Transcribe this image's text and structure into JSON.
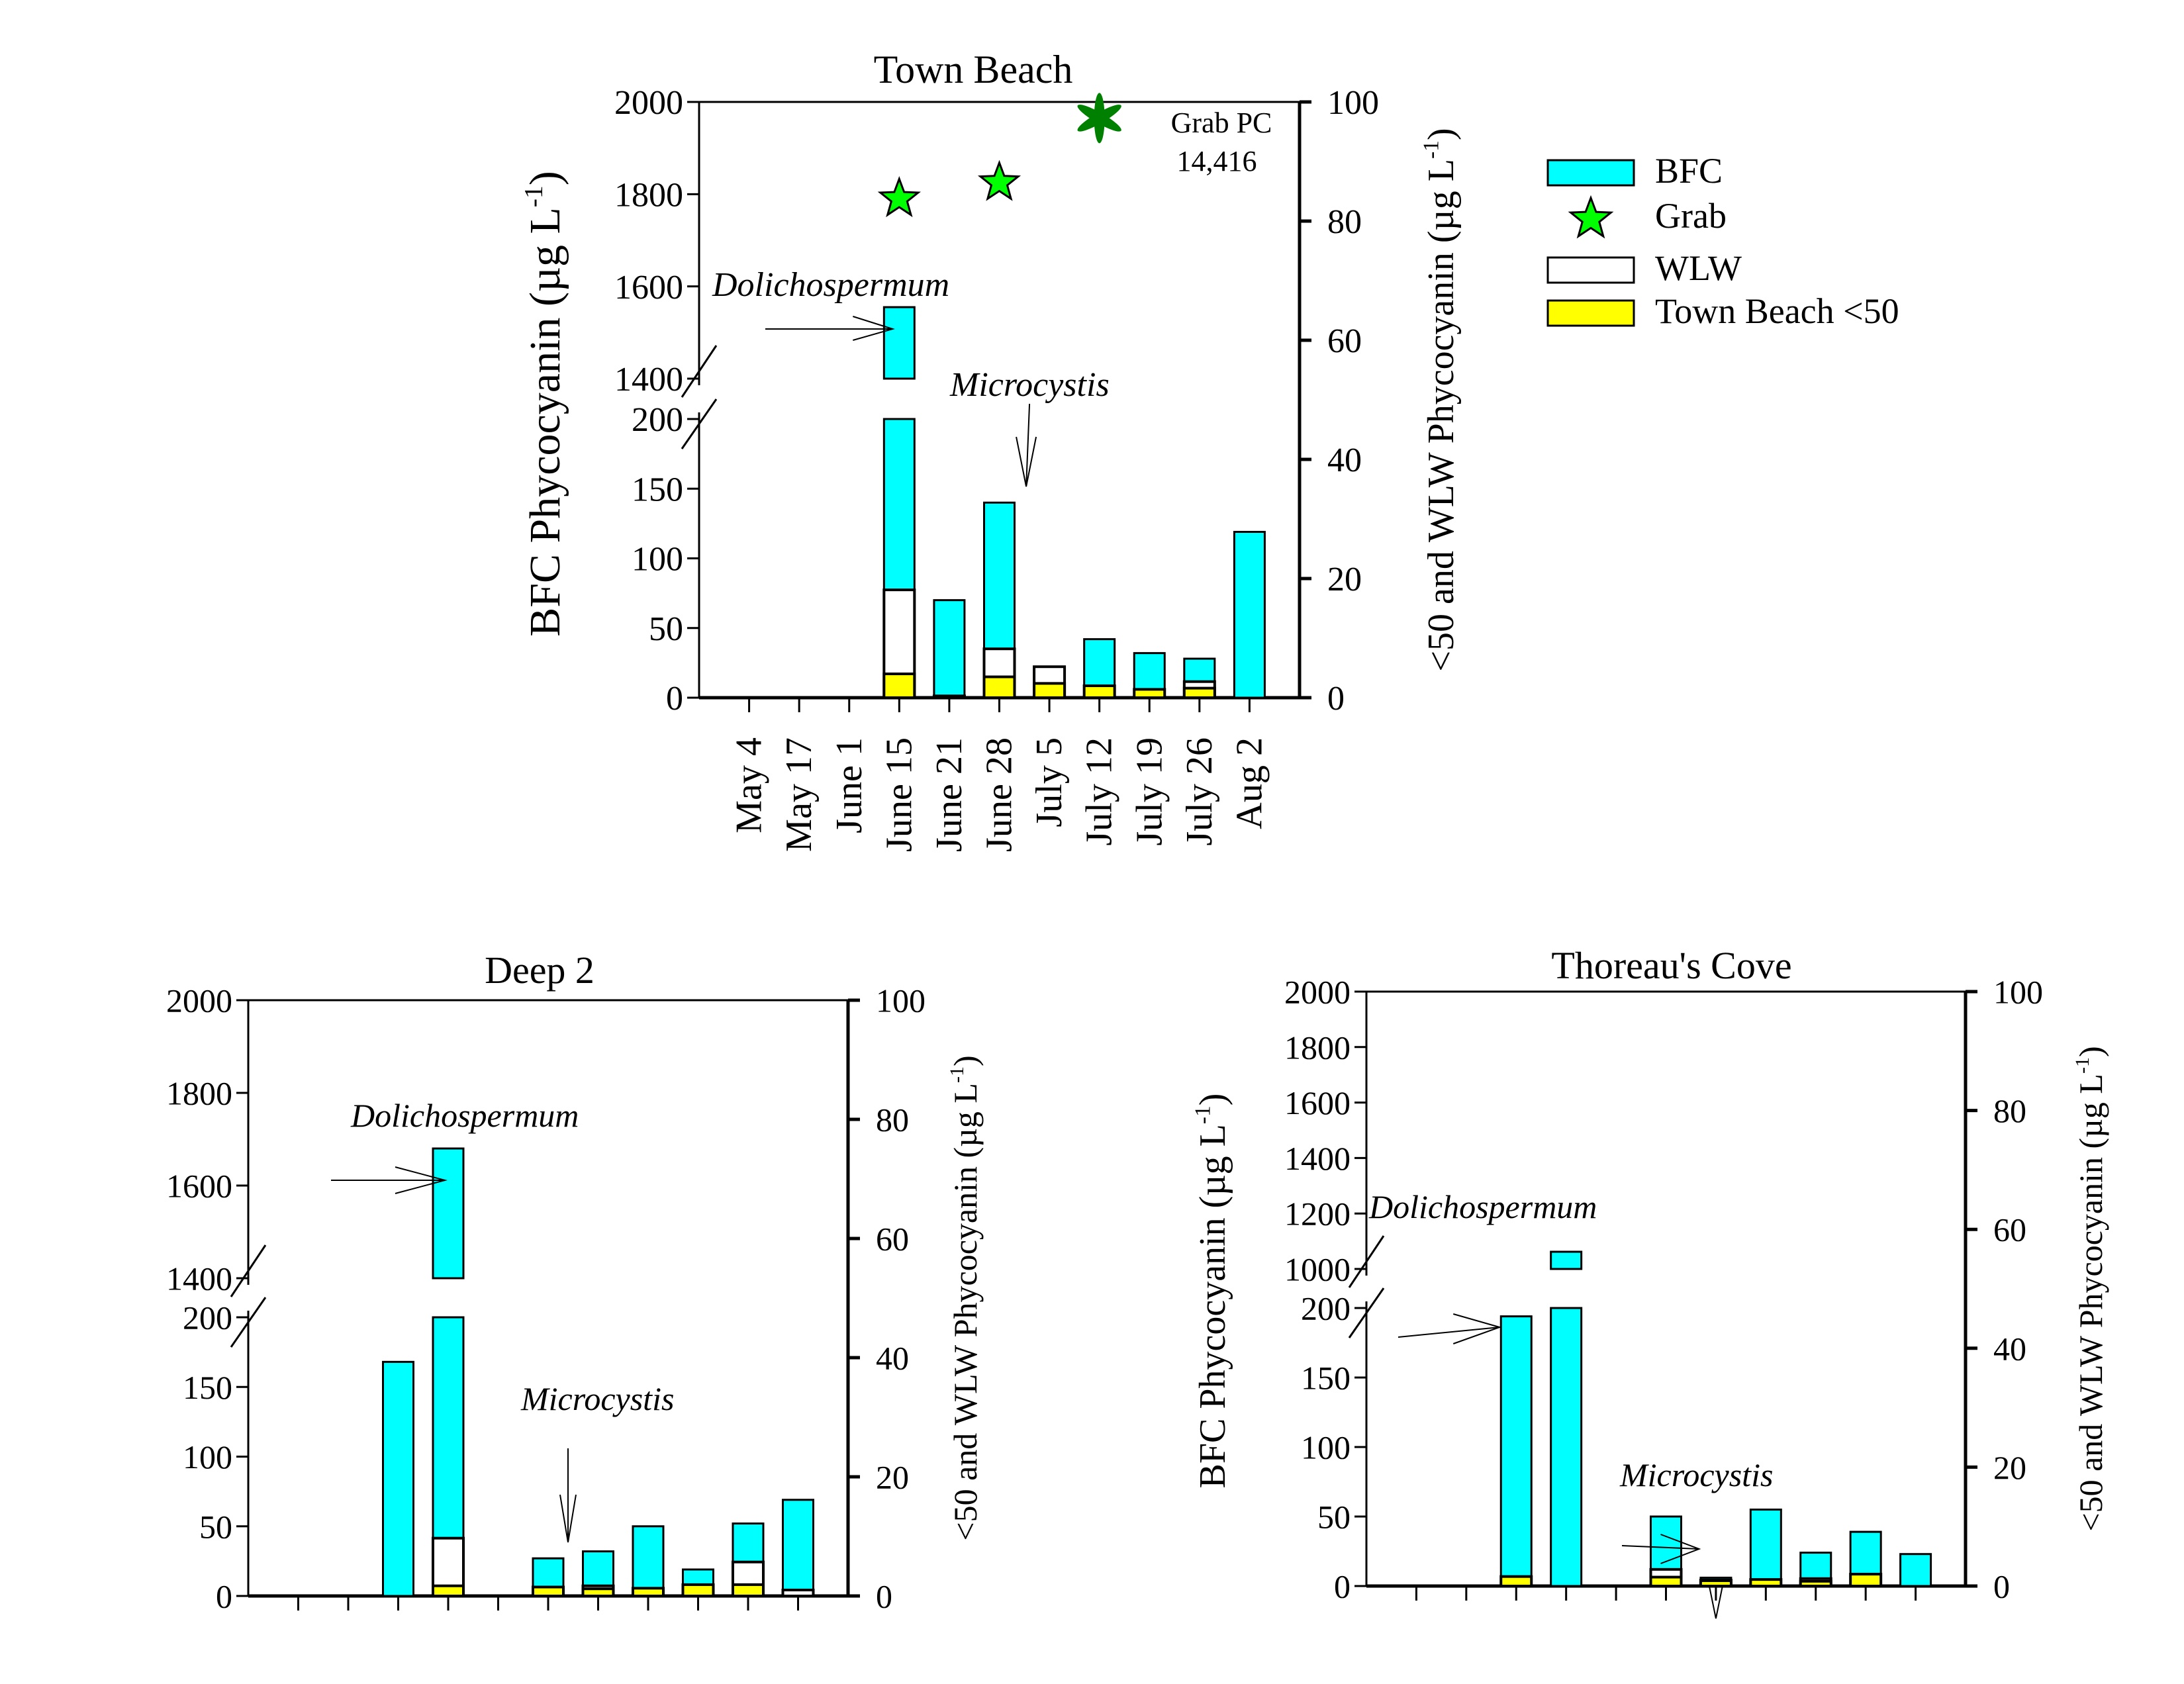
{
  "legend": {
    "items": [
      {
        "label": "BFC",
        "kind": "bar",
        "color": "#00FFFF"
      },
      {
        "label": "Grab",
        "kind": "star",
        "color": "#00FF00"
      },
      {
        "label": "WLW",
        "kind": "bar",
        "color": "#FFFFFF"
      },
      {
        "label": "Town Beach <50",
        "kind": "bar",
        "color": "#FFFF00"
      }
    ]
  },
  "colors": {
    "bfc": "#00FFFF",
    "wlw": "#FFFFFF",
    "lt50": "#FFFF00",
    "grab_star": "#00FF00",
    "grab_asterisk": "#008000",
    "axis": "#000000"
  },
  "chart_data": [
    {
      "id": "town-beach",
      "type": "bar",
      "stacked": true,
      "title": "Town Beach",
      "ylabel": "BFC Phycocyanin (µg L-1)",
      "ylabel_main": "BFC Phycocyanin (µg L",
      "ylabel_sup": "-1",
      "ylabel_close": ")",
      "y2label_main": "<50 and WLW Phycocyanin (µg L",
      "y2label_sup": "-1",
      "y2label_close": ")",
      "categories": [
        "May 4",
        "May 17",
        "June 1",
        "June 15",
        "June 21",
        "June 28",
        "July 5",
        "July 12",
        "July 19",
        "July 26",
        "Aug 2"
      ],
      "show_category_labels": true,
      "y_axis_break": {
        "lower": [
          0,
          200
        ],
        "upper": [
          1400,
          2000
        ]
      },
      "y_ticks_lower": [
        0,
        50,
        100,
        150,
        200
      ],
      "y_ticks_upper": [
        1400,
        1600,
        1800,
        2000
      ],
      "y2lim": [
        0,
        100
      ],
      "y2_ticks": [
        0,
        20,
        40,
        60,
        80,
        100
      ],
      "series": [
        {
          "name": "BFC",
          "axis": "left",
          "values": [
            0,
            0,
            0,
            1555,
            70,
            140,
            0,
            42,
            32,
            28,
            119
          ]
        },
        {
          "name": "WLW",
          "axis": "right",
          "values": [
            0,
            0,
            0,
            18.1,
            0,
            8.2,
            5.2,
            0,
            0,
            2.7,
            0
          ]
        },
        {
          "name": "Town Beach <50",
          "axis": "right",
          "values": [
            0,
            0,
            0,
            4.0,
            0.3,
            3.5,
            2.4,
            2.0,
            1.4,
            1.6,
            0
          ]
        }
      ],
      "grab": [
        {
          "category": "June 15",
          "value": 1790,
          "marker": "star"
        },
        {
          "category": "June 28",
          "value": 1825,
          "marker": "star"
        },
        {
          "category": "July 12",
          "value": 14416,
          "marker": "asterisk",
          "off_scale": true
        }
      ],
      "annotations": [
        {
          "text": "Dolichospermum",
          "category": "June 15",
          "arrow": "right"
        },
        {
          "text": "Microcystis",
          "category": "July 5",
          "arrow": "down"
        },
        {
          "text": "Grab PC",
          "line2": "14,416"
        }
      ]
    },
    {
      "id": "deep-2",
      "type": "bar",
      "stacked": true,
      "title": "Deep 2",
      "ylabel_main": "",
      "ylabel_sup": "",
      "ylabel_close": "",
      "y2label_main": "<50 and WLW Phycocyanin (µg L",
      "y2label_sup": "-1",
      "y2label_close": ")",
      "categories": [
        "May 4",
        "May 17",
        "June 1",
        "June 15",
        "June 21",
        "June 28",
        "July 5",
        "July 12",
        "July 19",
        "July 26",
        "Aug 2"
      ],
      "show_category_labels": false,
      "y_axis_break": {
        "lower": [
          0,
          200
        ],
        "upper": [
          1400,
          2000
        ]
      },
      "y_ticks_lower": [
        0,
        50,
        100,
        150,
        200
      ],
      "y_ticks_upper": [
        1400,
        1600,
        1800,
        2000
      ],
      "y2lim": [
        0,
        100
      ],
      "y2_ticks": [
        0,
        20,
        40,
        60,
        80,
        100
      ],
      "series": [
        {
          "name": "BFC",
          "axis": "left",
          "values": [
            0,
            0,
            168,
            1680,
            0,
            27,
            32,
            50,
            19,
            52,
            69
          ]
        },
        {
          "name": "WLW",
          "axis": "right",
          "values": [
            0,
            0,
            0,
            9.7,
            0,
            0,
            1.7,
            0,
            0,
            5.7,
            1.0
          ]
        },
        {
          "name": "<50",
          "axis": "right",
          "values": [
            0,
            0,
            0,
            1.7,
            0,
            1.5,
            1.2,
            1.3,
            1.9,
            1.9,
            0
          ]
        }
      ],
      "grab": [],
      "annotations": [
        {
          "text": "Dolichospermum",
          "category": "June 15",
          "arrow": "right"
        },
        {
          "text": "Microcystis",
          "category": "June 28",
          "arrow": "down"
        }
      ]
    },
    {
      "id": "thoreaus-cove",
      "type": "bar",
      "stacked": true,
      "title": "Thoreau's Cove",
      "ylabel_main": "BFC Phycocyanin (µg L",
      "ylabel_sup": "-1",
      "ylabel_close": ")",
      "y2label_main": "<50 and WLW Phycocyanin (µg L",
      "y2label_sup": "-1",
      "y2label_close": ")",
      "categories": [
        "May 4",
        "May 17",
        "June 1",
        "June 15",
        "June 21",
        "June 28",
        "July 5",
        "July 12",
        "July 19",
        "July 26",
        "Aug 2"
      ],
      "show_category_labels": false,
      "y_axis_break": {
        "lower": [
          0,
          200
        ],
        "upper": [
          1000,
          2000
        ]
      },
      "y_ticks_lower": [
        0,
        50,
        100,
        150,
        200
      ],
      "y_ticks_upper": [
        1000,
        1200,
        1400,
        1600,
        1800,
        2000
      ],
      "y2lim": [
        0,
        100
      ],
      "y2_ticks": [
        0,
        20,
        40,
        60,
        80,
        100
      ],
      "series": [
        {
          "name": "BFC",
          "axis": "left",
          "values": [
            0,
            0,
            194,
            1062,
            0,
            50,
            6,
            55,
            24,
            39,
            23
          ]
        },
        {
          "name": "WLW",
          "axis": "right",
          "values": [
            0,
            0,
            0,
            0,
            0,
            2.8,
            1.0,
            0,
            1.25,
            0,
            0
          ]
        },
        {
          "name": "<50",
          "axis": "right",
          "values": [
            0,
            0,
            1.6,
            0,
            0,
            1.5,
            0.9,
            1.1,
            0.8,
            2.0,
            0
          ]
        }
      ],
      "grab": [],
      "annotations": [
        {
          "text": "Dolichospermum",
          "category": "June 1",
          "arrow": "right"
        },
        {
          "text": "Microcystis",
          "category": "June 28",
          "arrow": "right"
        }
      ]
    }
  ]
}
